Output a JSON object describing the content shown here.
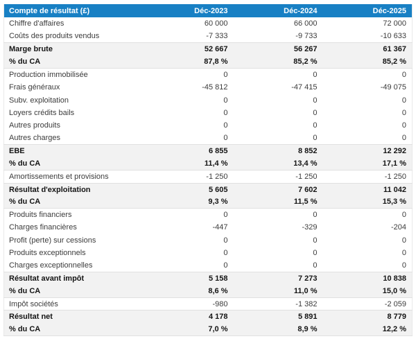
{
  "colors": {
    "header_bg": "#1880c4",
    "header_text": "#ffffff",
    "subtotal_bg": "#f2f2f2",
    "band_border": "#e0e0e0",
    "outer_border": "#e9e9e9",
    "text": "#3b3b3b",
    "bold_text": "#141414"
  },
  "chart_data": {
    "type": "table",
    "title": "Compte de résultat (£)",
    "currency": "£",
    "columns": [
      "Déc-2023",
      "Déc-2024",
      "Déc-2025"
    ],
    "rows": [
      {
        "label": "Chiffre d'affaires",
        "values": [
          "60 000",
          "66 000",
          "72 000"
        ],
        "emphasis": false
      },
      {
        "label": "Coûts des produits vendus",
        "values": [
          "-7 333",
          "-9 733",
          "-10 633"
        ],
        "emphasis": false
      },
      {
        "label": "Marge brute",
        "values": [
          "52 667",
          "56 267",
          "61 367"
        ],
        "emphasis": true
      },
      {
        "label": "% du CA",
        "values": [
          "87,8 %",
          "85,2 %",
          "85,2 %"
        ],
        "emphasis": true
      },
      {
        "label": "Production immobilisée",
        "values": [
          "0",
          "0",
          "0"
        ],
        "emphasis": false
      },
      {
        "label": "Frais généraux",
        "values": [
          "-45 812",
          "-47 415",
          "-49 075"
        ],
        "emphasis": false
      },
      {
        "label": "Subv. exploitation",
        "values": [
          "0",
          "0",
          "0"
        ],
        "emphasis": false
      },
      {
        "label": "Loyers crédits bails",
        "values": [
          "0",
          "0",
          "0"
        ],
        "emphasis": false
      },
      {
        "label": "Autres produits",
        "values": [
          "0",
          "0",
          "0"
        ],
        "emphasis": false
      },
      {
        "label": "Autres charges",
        "values": [
          "0",
          "0",
          "0"
        ],
        "emphasis": false
      },
      {
        "label": "EBE",
        "values": [
          "6 855",
          "8 852",
          "12 292"
        ],
        "emphasis": true
      },
      {
        "label": "% du CA",
        "values": [
          "11,4 %",
          "13,4 %",
          "17,1 %"
        ],
        "emphasis": true
      },
      {
        "label": "Amortissements et provisions",
        "values": [
          "-1 250",
          "-1 250",
          "-1 250"
        ],
        "emphasis": false
      },
      {
        "label": "Résultat d'exploitation",
        "values": [
          "5 605",
          "7 602",
          "11 042"
        ],
        "emphasis": true
      },
      {
        "label": "% du CA",
        "values": [
          "9,3 %",
          "11,5 %",
          "15,3 %"
        ],
        "emphasis": true
      },
      {
        "label": "Produits financiers",
        "values": [
          "0",
          "0",
          "0"
        ],
        "emphasis": false
      },
      {
        "label": "Charges financières",
        "values": [
          "-447",
          "-329",
          "-204"
        ],
        "emphasis": false
      },
      {
        "label": "Profit (perte) sur cessions",
        "values": [
          "0",
          "0",
          "0"
        ],
        "emphasis": false
      },
      {
        "label": "Produits exceptionnels",
        "values": [
          "0",
          "0",
          "0"
        ],
        "emphasis": false
      },
      {
        "label": "Charges exceptionnelles",
        "values": [
          "0",
          "0",
          "0"
        ],
        "emphasis": false
      },
      {
        "label": "Résultat avant impôt",
        "values": [
          "5 158",
          "7 273",
          "10 838"
        ],
        "emphasis": true
      },
      {
        "label": "% du CA",
        "values": [
          "8,6 %",
          "11,0 %",
          "15,0 %"
        ],
        "emphasis": true
      },
      {
        "label": "Impôt sociétés",
        "values": [
          "-980",
          "-1 382",
          "-2 059"
        ],
        "emphasis": false
      },
      {
        "label": "Résultat net",
        "values": [
          "4 178",
          "5 891",
          "8 779"
        ],
        "emphasis": true
      },
      {
        "label": "% du CA",
        "values": [
          "7,0 %",
          "8,9 %",
          "12,2 %"
        ],
        "emphasis": true
      }
    ]
  }
}
